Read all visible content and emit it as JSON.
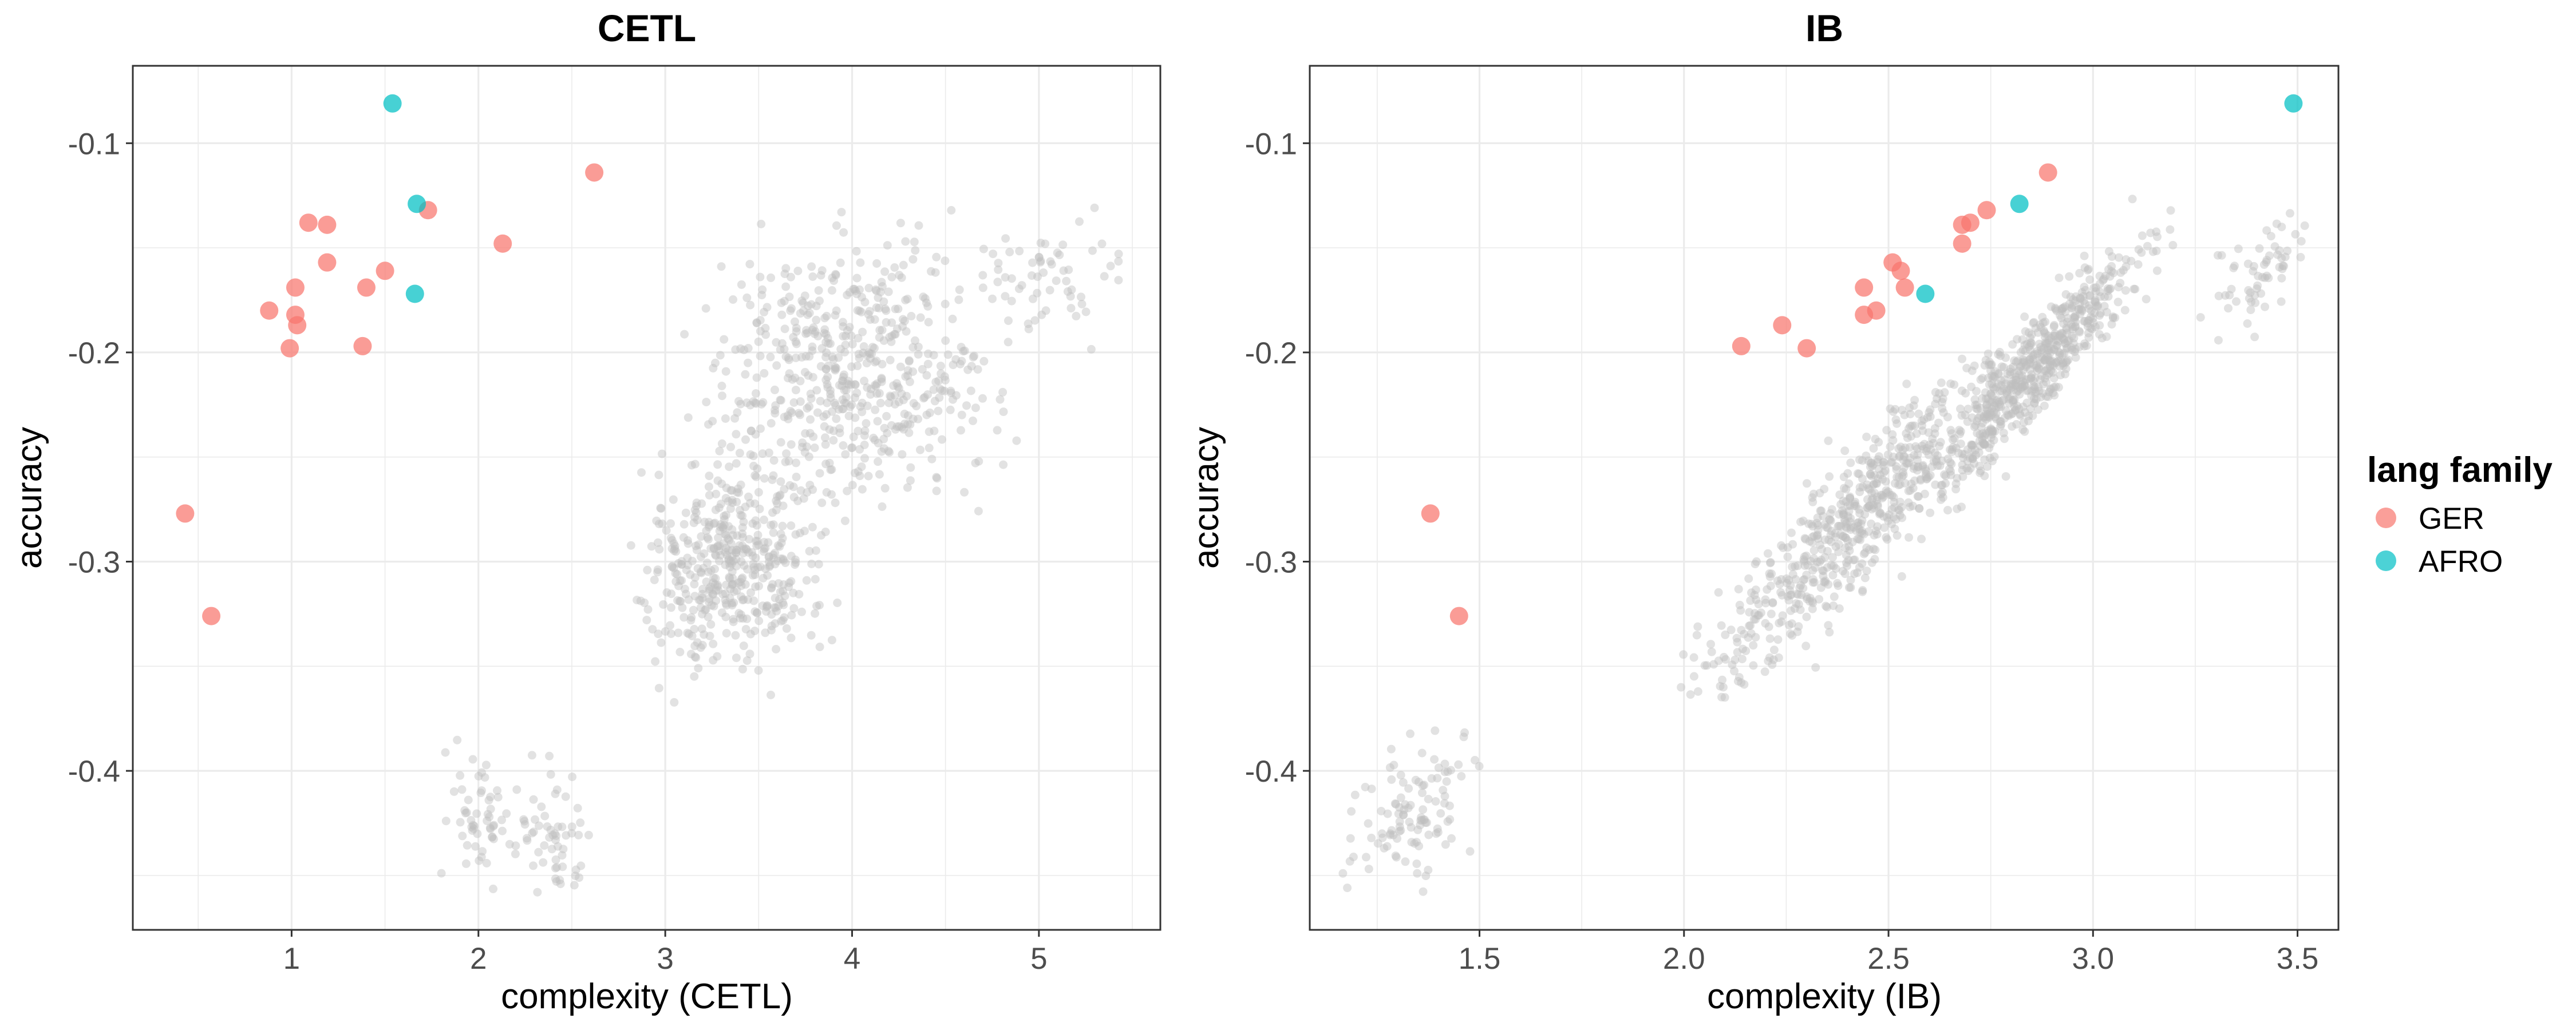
{
  "legend": {
    "title": "lang family",
    "placement": "right",
    "items": [
      {
        "label": "GER",
        "color": "#F8766D"
      },
      {
        "label": "AFRO",
        "color": "#00BFC4"
      }
    ]
  },
  "chart_data": [
    {
      "type": "scatter",
      "title": "CETL",
      "xlabel": "complexity (CETL)",
      "ylabel": "accuracy",
      "xlim": [
        0.15,
        5.65
      ],
      "ylim": [
        -0.476,
        -0.063
      ],
      "xticks": [
        1,
        2,
        3,
        4,
        5
      ],
      "xtick_labels": [
        "1",
        "2",
        "3",
        "4",
        "5"
      ],
      "yticks": [
        -0.4,
        -0.3,
        -0.2,
        -0.1
      ],
      "ytick_labels": [
        "-0.4",
        "-0.3",
        "-0.2",
        "-0.1"
      ],
      "grid": true,
      "background_cloud": {
        "color": "#bebebe",
        "approx_points": 1400,
        "clusters": [
          {
            "cx": 3.35,
            "cy": -0.3,
            "sx": 0.26,
            "sy": 0.025,
            "rho": 0.1,
            "n": 460,
            "xr": [
              2.8,
              4.0
            ],
            "yr": [
              -0.37,
              -0.24
            ]
          },
          {
            "cx": 4.0,
            "cy": -0.21,
            "sx": 0.38,
            "sy": 0.03,
            "rho": 0.05,
            "n": 560,
            "xr": [
              3.0,
              4.9
            ],
            "yr": [
              -0.29,
              -0.125
            ]
          },
          {
            "cx": 5.1,
            "cy": -0.165,
            "sx": 0.18,
            "sy": 0.016,
            "rho": 0,
            "n": 60,
            "xr": [
              4.6,
              5.45
            ],
            "yr": [
              -0.2,
              -0.13
            ]
          },
          {
            "cx": 2.0,
            "cy": -0.42,
            "sx": 0.08,
            "sy": 0.017,
            "rho": 0,
            "n": 55,
            "xr": [
              1.8,
              2.2
            ],
            "yr": [
              -0.46,
              -0.385
            ]
          },
          {
            "cx": 2.4,
            "cy": -0.43,
            "sx": 0.1,
            "sy": 0.015,
            "rho": -0.4,
            "n": 60,
            "xr": [
              2.1,
              2.6
            ],
            "yr": [
              -0.46,
              -0.39
            ]
          }
        ]
      },
      "series": [
        {
          "name": "GER",
          "color": "#F8766D",
          "x": [
            0.43,
            0.57,
            1.09,
            1.19,
            1.19,
            1.02,
            0.88,
            1.02,
            1.03,
            0.99,
            1.4,
            1.5,
            1.73,
            1.38,
            2.13,
            2.62
          ],
          "y": [
            -0.277,
            -0.326,
            -0.138,
            -0.139,
            -0.157,
            -0.169,
            -0.18,
            -0.182,
            -0.187,
            -0.198,
            -0.169,
            -0.161,
            -0.132,
            -0.197,
            -0.148,
            -0.114
          ]
        },
        {
          "name": "AFRO",
          "color": "#00BFC4",
          "x": [
            1.54,
            1.67,
            1.66
          ],
          "y": [
            -0.081,
            -0.129,
            -0.172
          ]
        }
      ]
    },
    {
      "type": "scatter",
      "title": "IB",
      "xlabel": "complexity (IB)",
      "ylabel": "accuracy",
      "xlim": [
        1.085,
        3.6
      ],
      "ylim": [
        -0.476,
        -0.063
      ],
      "xticks": [
        1.5,
        2.0,
        2.5,
        3.0,
        3.5
      ],
      "xtick_labels": [
        "1.5",
        "2.0",
        "2.5",
        "3.0",
        "3.5"
      ],
      "yticks": [
        -0.4,
        -0.3,
        -0.2,
        -0.1
      ],
      "ytick_labels": [
        "-0.4",
        "-0.3",
        "-0.2",
        "-0.1"
      ],
      "grid": true,
      "background_cloud": {
        "color": "#bebebe",
        "approx_points": 1400,
        "clusters": [
          {
            "cx": 2.42,
            "cy": -0.28,
            "sx": 0.2,
            "sy": 0.045,
            "rho": 0.93,
            "n": 600,
            "xr": [
              1.85,
              2.85
            ],
            "yr": [
              -0.365,
              -0.2
            ]
          },
          {
            "cx": 2.85,
            "cy": -0.21,
            "sx": 0.13,
            "sy": 0.03,
            "rho": 0.93,
            "n": 600,
            "xr": [
              2.5,
              3.25
            ],
            "yr": [
              -0.28,
              -0.125
            ]
          },
          {
            "cx": 3.42,
            "cy": -0.16,
            "sx": 0.06,
            "sy": 0.015,
            "rho": 0.6,
            "n": 60,
            "xr": [
              3.25,
              3.55
            ],
            "yr": [
              -0.2,
              -0.125
            ]
          },
          {
            "cx": 1.33,
            "cy": -0.42,
            "sx": 0.07,
            "sy": 0.018,
            "rho": 0.2,
            "n": 110,
            "xr": [
              1.12,
              1.5
            ],
            "yr": [
              -0.46,
              -0.38
            ]
          }
        ]
      },
      "series": [
        {
          "name": "GER",
          "color": "#F8766D",
          "x": [
            1.38,
            1.45,
            2.14,
            2.24,
            2.3,
            2.44,
            2.44,
            2.47,
            2.51,
            2.53,
            2.54,
            2.68,
            2.7,
            2.68,
            2.74,
            2.89
          ],
          "y": [
            -0.277,
            -0.326,
            -0.197,
            -0.187,
            -0.198,
            -0.169,
            -0.182,
            -0.18,
            -0.157,
            -0.161,
            -0.169,
            -0.139,
            -0.138,
            -0.148,
            -0.132,
            -0.114
          ]
        },
        {
          "name": "AFRO",
          "color": "#00BFC4",
          "x": [
            3.49,
            2.82,
            2.59
          ],
          "y": [
            -0.081,
            -0.129,
            -0.172
          ]
        }
      ]
    }
  ]
}
